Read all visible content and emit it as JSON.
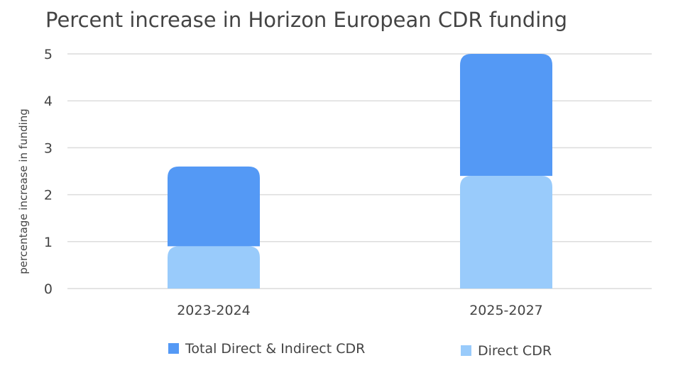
{
  "chart_data": {
    "type": "bar",
    "stacked": true,
    "title": "Percent increase in Horizon European CDR funding",
    "xlabel": "",
    "ylabel": "percentage increase in funding",
    "categories": [
      "2023-2024",
      "2025-2027"
    ],
    "ylim": [
      0,
      5
    ],
    "yticks": [
      0,
      1,
      2,
      3,
      4,
      5
    ],
    "grid": true,
    "legend_position": "bottom",
    "series": [
      {
        "name": "Direct CDR",
        "values": [
          0.9,
          2.4
        ],
        "color": "#99cbfb"
      },
      {
        "name": "Total Direct & Indirect CDR",
        "values": [
          1.7,
          2.6
        ],
        "color": "#5499f5"
      }
    ],
    "legend_order": [
      "Total Direct & Indirect CDR",
      "Direct CDR"
    ]
  }
}
